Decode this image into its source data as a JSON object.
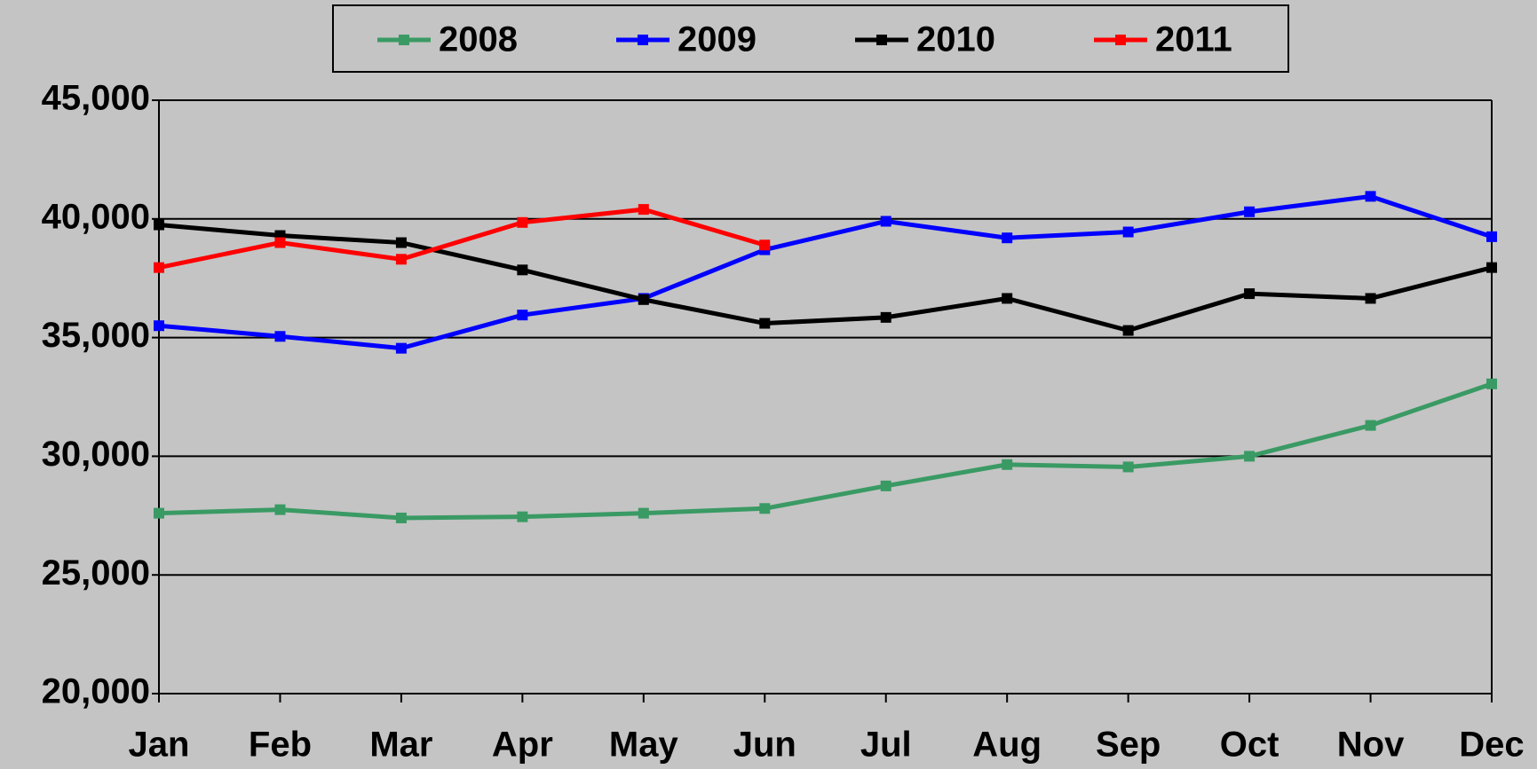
{
  "chart_data": {
    "type": "line",
    "categories": [
      "Jan",
      "Feb",
      "Mar",
      "Apr",
      "May",
      "Jun",
      "Jul",
      "Aug",
      "Sep",
      "Oct",
      "Nov",
      "Dec"
    ],
    "series": [
      {
        "name": "2008",
        "color": "#3a9a64",
        "values": [
          27600,
          27750,
          27400,
          27450,
          27600,
          27800,
          28750,
          29650,
          29550,
          30000,
          31300,
          33050
        ]
      },
      {
        "name": "2009",
        "color": "#0000ff",
        "values": [
          35500,
          35050,
          34550,
          35950,
          36650,
          38700,
          39900,
          39200,
          39450,
          40300,
          40950,
          39250
        ]
      },
      {
        "name": "2010",
        "color": "#000000",
        "values": [
          39750,
          39300,
          39000,
          37850,
          36600,
          35600,
          35850,
          36650,
          35300,
          36850,
          36650,
          37950
        ]
      },
      {
        "name": "2011",
        "color": "#ff0000",
        "values": [
          37950,
          39000,
          38300,
          39850,
          40400,
          38900,
          null,
          null,
          null,
          null,
          null,
          null
        ]
      }
    ],
    "ylim": [
      20000,
      45000
    ],
    "yticks": [
      {
        "value": 20000,
        "label": "20,000"
      },
      {
        "value": 25000,
        "label": "25,000"
      },
      {
        "value": 30000,
        "label": "30,000"
      },
      {
        "value": 35000,
        "label": "35,000"
      },
      {
        "value": 40000,
        "label": "40,000"
      },
      {
        "value": 45000,
        "label": "45,000"
      }
    ],
    "grid": true,
    "legend": "top"
  }
}
